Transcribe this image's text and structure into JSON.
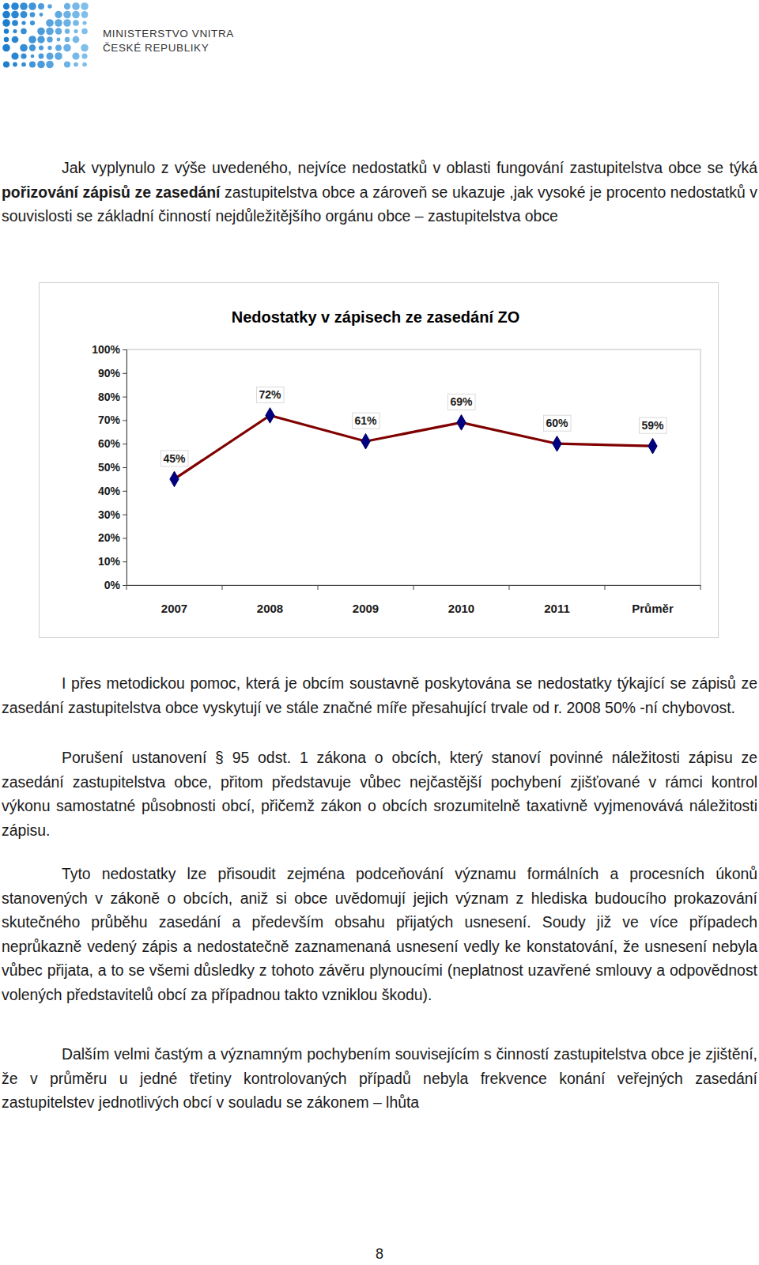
{
  "header": {
    "logo_text": [
      "MINISTERSTVO VNITRA",
      "ČESKÉ REPUBLIKY"
    ]
  },
  "paragraphs": [
    [
      {
        "text": "Jak vyplynulo z výše uvedeného, nejvíce nedostatků v oblasti fungování zastupitelstva obce se týká "
      },
      {
        "text": "pořizování zápisů ze zasedání",
        "bold": true
      },
      {
        "text": " zastupitelstva obce a zároveň se ukazuje ,jak vysoké je procento nedostatků v souvislosti se základní činností nejdůležitějšího orgánu obce – zastupitelstva obce"
      }
    ],
    [
      {
        "text": "I přes metodickou pomoc, která je obcím soustavně poskytována se nedostatky týkající se zápisů ze zasedání zastupitelstva obce vyskytují ve stále značné míře přesahující trvale od r. 2008 50% -ní chybovost."
      }
    ],
    [
      {
        "text": "Porušení ustanovení § 95 odst. 1 zákona o obcích, který stanoví povinné náležitosti zápisu ze zasedání zastupitelstva obce, přitom představuje vůbec nejčastější pochybení zjišťované v rámci kontrol výkonu samostatné působnosti obcí, přičemž zákon o obcích srozumitelně taxativně vyjmenovává náležitosti zápisu."
      }
    ],
    [
      {
        "text": "Tyto nedostatky lze přisoudit zejména podceňování významu formálních a procesních úkonů stanovených v zákoně o obcích, aniž si obce uvědomují jejich význam z hlediska budoucího prokazování skutečného průběhu zasedání a především obsahu přijatých usnesení. Soudy již ve více případech neprůkazně vedený zápis a nedostatečně zaznamenaná usnesení vedly ke konstatování, že usnesení nebyla vůbec přijata, a to se všemi důsledky z tohoto závěru plynoucími (neplatnost uzavřené smlouvy a odpovědnost volených představitelů obcí za případnou takto vzniklou škodu)."
      }
    ],
    [
      {
        "text": "Dalším velmi častým a významným pochybením souvisejícím s činností zastupitelstva obce je zjištění, že v průměru u jedné třetiny kontrolovaných případů nebyla frekvence konání veřejných zasedání zastupitelstev jednotlivých obcí v souladu se zákonem – lhůta"
      }
    ]
  ],
  "chart_data": {
    "type": "line",
    "title": "Nedostatky v zápisech ze zasedání ZO",
    "categories": [
      "2007",
      "2008",
      "2009",
      "2010",
      "2011",
      "Průměr"
    ],
    "values": [
      45,
      72,
      61,
      69,
      60,
      59
    ],
    "value_labels": [
      "45%",
      "72%",
      "61%",
      "69%",
      "60%",
      "59%"
    ],
    "data_labels": true,
    "color": "#800000",
    "marker": "diamond",
    "grid": false,
    "ylim": [
      0,
      100
    ],
    "yticks": [
      {
        "value": 0,
        "label": "0%"
      },
      {
        "value": 10,
        "label": "10%"
      },
      {
        "value": 20,
        "label": "20%"
      },
      {
        "value": 30,
        "label": "30%"
      },
      {
        "value": 40,
        "label": "40%"
      },
      {
        "value": 50,
        "label": "50%"
      },
      {
        "value": 60,
        "label": "60%"
      },
      {
        "value": 70,
        "label": "70%"
      },
      {
        "value": 80,
        "label": "80%"
      },
      {
        "value": 90,
        "label": "90%"
      },
      {
        "value": 100,
        "label": "100%"
      }
    ]
  },
  "page_number": 8
}
